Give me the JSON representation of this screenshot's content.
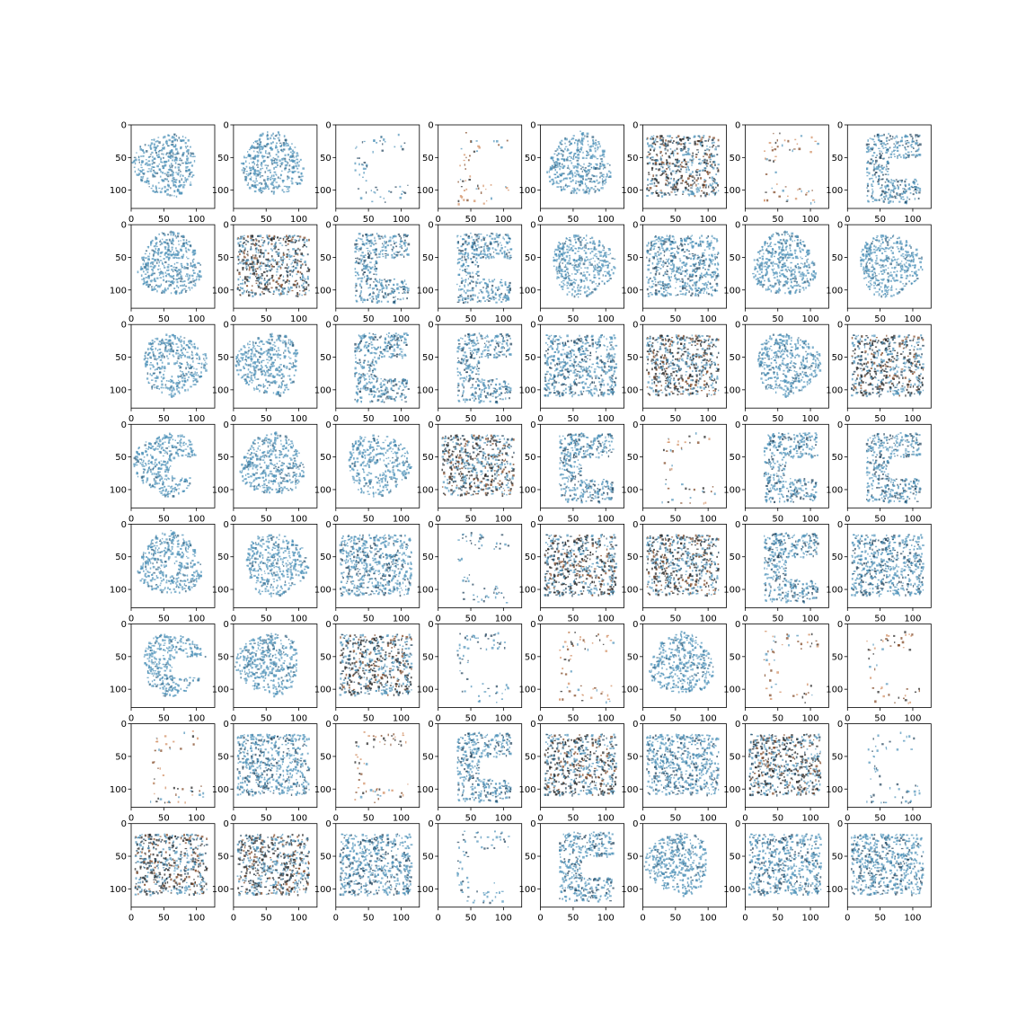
{
  "figure": {
    "rows": 8,
    "cols": 8,
    "x_ticks": [
      "0",
      "50",
      "100"
    ],
    "y_ticks": [
      "0",
      "50",
      "100"
    ],
    "colors": {
      "blue": "#4a90b8",
      "dark_blue": "#2f5f7f",
      "navy": "#1d3f58",
      "dark": "#1a1a1a",
      "orange": "#d08a5c",
      "brown": "#7a3e1a",
      "axes_edge": "#000000",
      "background": "#ffffff"
    },
    "panel_types": [
      [
        "blob",
        "blob",
        "ring-sparse",
        "ring-warm",
        "blob",
        "grid-dark",
        "ring-warm",
        "c-shape"
      ],
      [
        "blob",
        "grid-dark",
        "c-shape",
        "c-shape",
        "blob",
        "grid-blue",
        "blob",
        "blob"
      ],
      [
        "blob-hole",
        "blob",
        "c-shape",
        "c-shape",
        "grid-blue",
        "grid-dark",
        "blob",
        "grid-dark"
      ],
      [
        "blob-notch",
        "blob",
        "blob-hole",
        "grid-dark",
        "c-shape",
        "ring-warm",
        "c-shape",
        "c-shape"
      ],
      [
        "blob-hole",
        "blob",
        "grid-blue",
        "ring-sparse",
        "grid-dark",
        "grid-dark",
        "c-shape",
        "grid-blue"
      ],
      [
        "blob-notch",
        "blob",
        "grid-dark",
        "ring-sparse",
        "ring-warm",
        "blob",
        "ring-warm",
        "ring-warm"
      ],
      [
        "ring-warm",
        "grid-blue",
        "ring-warm",
        "c-shape",
        "grid-dark",
        "grid-blue",
        "grid-dark",
        "ring-sparse"
      ],
      [
        "grid-dark",
        "grid-dark",
        "grid-blue",
        "ring-sparse",
        "c-shape",
        "blob",
        "grid-blue",
        "grid-blue"
      ]
    ]
  }
}
